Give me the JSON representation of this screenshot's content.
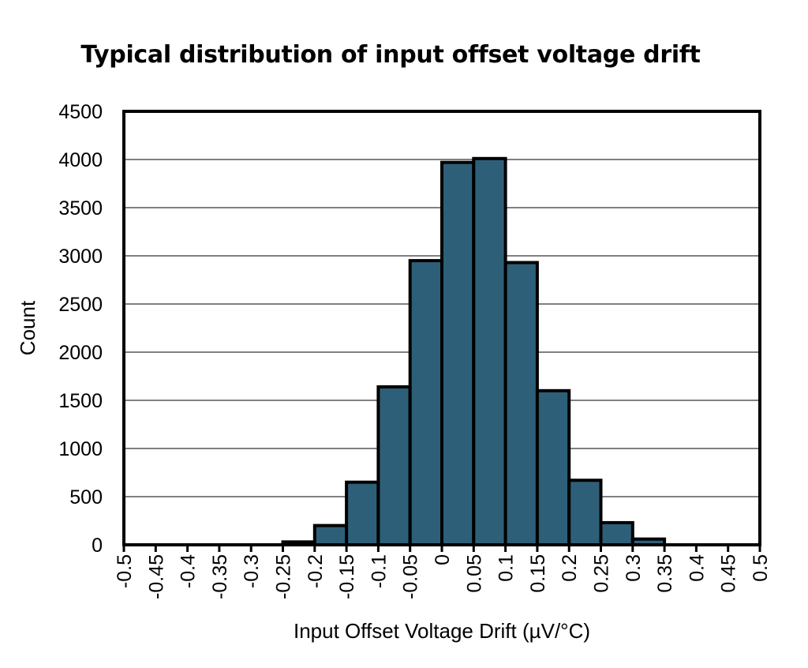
{
  "chart_data": {
    "type": "bar",
    "title": "Typical distribution of input offset voltage drift",
    "xlabel": "Input Offset Voltage Drift (µV/°C)",
    "ylabel": "Count",
    "x_ticks": [
      "-0.5",
      "-0.45",
      "-0.4",
      "-0.35",
      "-0.3",
      "-0.25",
      "-0.2",
      "-0.15",
      "-0.1",
      "-0.05",
      "0",
      "0.05",
      "0.1",
      "0.15",
      "0.2",
      "0.25",
      "0.3",
      "0.35",
      "0.4",
      "0.45",
      "0.5"
    ],
    "y_ticks": [
      0,
      500,
      1000,
      1500,
      2000,
      2500,
      3000,
      3500,
      4000,
      4500
    ],
    "ylim": [
      0,
      4500
    ],
    "xlim": [
      -0.5,
      0.5
    ],
    "bin_width": 0.05,
    "bins": [
      {
        "x0": -0.25,
        "x1": -0.2,
        "count": 30
      },
      {
        "x0": -0.2,
        "x1": -0.15,
        "count": 200
      },
      {
        "x0": -0.15,
        "x1": -0.1,
        "count": 650
      },
      {
        "x0": -0.1,
        "x1": -0.05,
        "count": 1640
      },
      {
        "x0": -0.05,
        "x1": 0,
        "count": 2950
      },
      {
        "x0": 0,
        "x1": 0.05,
        "count": 3970
      },
      {
        "x0": 0.05,
        "x1": 0.1,
        "count": 4010
      },
      {
        "x0": 0.1,
        "x1": 0.15,
        "count": 2930
      },
      {
        "x0": 0.15,
        "x1": 0.2,
        "count": 1600
      },
      {
        "x0": 0.2,
        "x1": 0.25,
        "count": 670
      },
      {
        "x0": 0.25,
        "x1": 0.3,
        "count": 230
      },
      {
        "x0": 0.3,
        "x1": 0.35,
        "count": 60
      }
    ],
    "grid": "horizontal",
    "bar_color": "#2e5f78",
    "edge_color": "#000000"
  }
}
